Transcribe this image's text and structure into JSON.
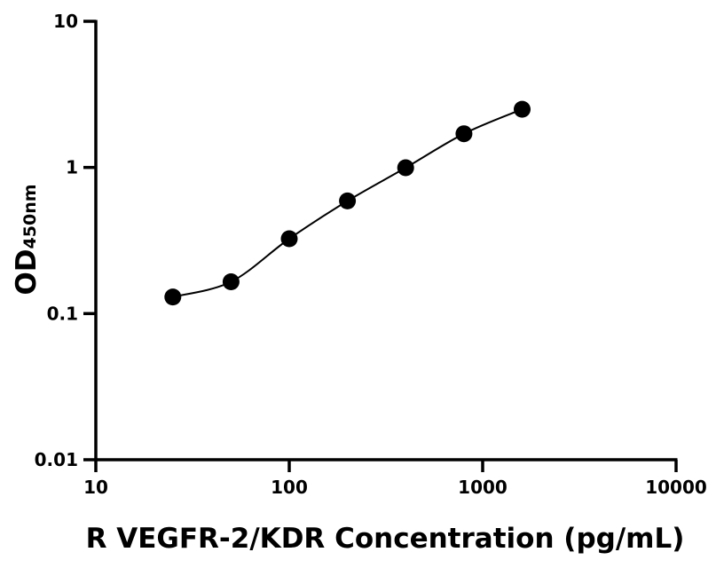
{
  "chart_data": {
    "type": "scatter",
    "xlabel": "R VEGFR-2/KDR Concentration (pg/mL)",
    "ylabel_main": "OD",
    "ylabel_sub": "450nm",
    "x_scale": "log",
    "y_scale": "log",
    "xlim": [
      10,
      10000
    ],
    "ylim": [
      0.01,
      10
    ],
    "x_ticks": [
      {
        "value": 10,
        "label": "10"
      },
      {
        "value": 100,
        "label": "100"
      },
      {
        "value": 1000,
        "label": "1000"
      },
      {
        "value": 10000,
        "label": "10000"
      }
    ],
    "y_ticks": [
      {
        "value": 0.01,
        "label": "0.01"
      },
      {
        "value": 0.1,
        "label": "0.1"
      },
      {
        "value": 1,
        "label": "1"
      },
      {
        "value": 10,
        "label": "10"
      }
    ],
    "grid": false,
    "series": [
      {
        "points": [
          {
            "x": 25,
            "y": 0.13
          },
          {
            "x": 50,
            "y": 0.165
          },
          {
            "x": 100,
            "y": 0.325
          },
          {
            "x": 200,
            "y": 0.59
          },
          {
            "x": 400,
            "y": 0.995
          },
          {
            "x": 800,
            "y": 1.7
          },
          {
            "x": 1600,
            "y": 2.5
          }
        ],
        "fit_curve": true,
        "marker_color": "#000000",
        "line_color": "#000000"
      }
    ]
  }
}
